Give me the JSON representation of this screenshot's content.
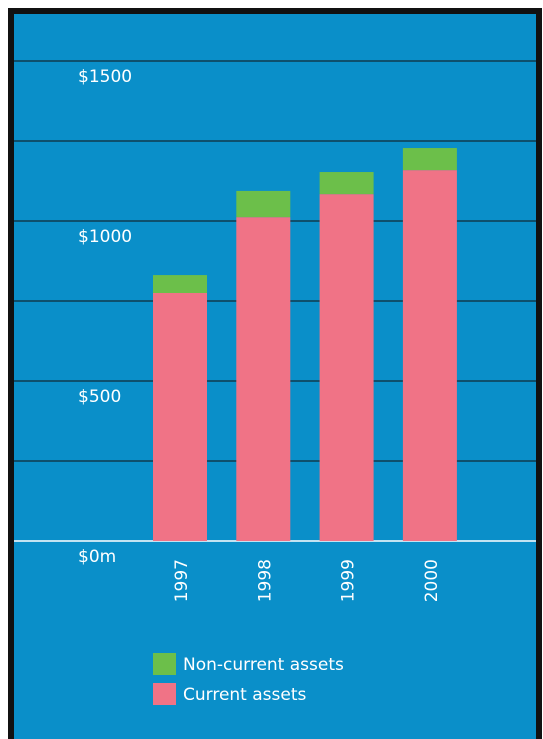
{
  "chart_data": {
    "type": "stacked_bar",
    "categories": [
      "1997",
      "1998",
      "1999",
      "2000"
    ],
    "series": [
      {
        "name": "Current assets",
        "color": "#f07386",
        "values": [
          775,
          1012,
          1084,
          1159
        ]
      },
      {
        "name": "Non-current assets",
        "color": "#6cbf4a",
        "values": [
          56,
          82,
          69,
          69
        ]
      }
    ],
    "ylim": [
      0,
      1650
    ],
    "yticks": [
      {
        "value": 0,
        "label": "$0m"
      },
      {
        "value": 500,
        "label": "$500"
      },
      {
        "value": 1000,
        "label": "$1000"
      },
      {
        "value": 1500,
        "label": "$1500"
      }
    ],
    "minor_yticks": [
      250,
      750,
      1250
    ],
    "grid": true,
    "background": "#0a8fc9"
  }
}
